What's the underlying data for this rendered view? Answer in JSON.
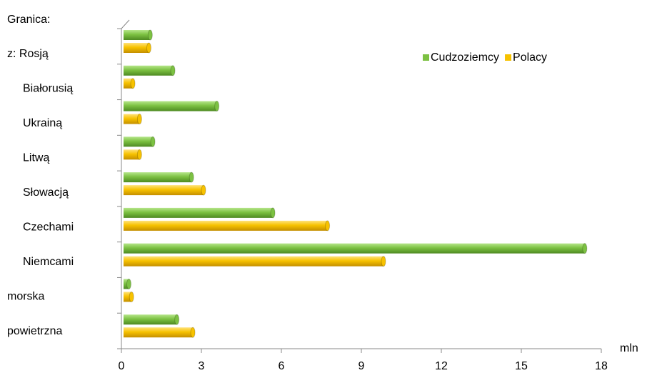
{
  "chart_data": {
    "type": "bar",
    "orientation": "horizontal",
    "category_header": "Granica:",
    "categories": [
      "z: Rosją",
      "Białorusią",
      "Ukrainą",
      "Litwą",
      "Słowacją",
      "Czechami",
      "Niemcami",
      "morska",
      "powietrzna"
    ],
    "series": [
      {
        "name": "Cudzoziemcy",
        "color": "#7cc142",
        "values": [
          1.0,
          1.85,
          3.5,
          1.1,
          2.55,
          5.6,
          17.3,
          0.2,
          2.0
        ]
      },
      {
        "name": "Polacy",
        "color": "#f7c200",
        "values": [
          0.95,
          0.35,
          0.6,
          0.6,
          3.0,
          7.65,
          9.75,
          0.3,
          2.6
        ]
      }
    ],
    "xlim": [
      0,
      18
    ],
    "xticks": [
      0,
      3,
      6,
      9,
      12,
      15,
      18
    ],
    "xlabel": "mln",
    "legend": "top-right",
    "grid": false
  }
}
